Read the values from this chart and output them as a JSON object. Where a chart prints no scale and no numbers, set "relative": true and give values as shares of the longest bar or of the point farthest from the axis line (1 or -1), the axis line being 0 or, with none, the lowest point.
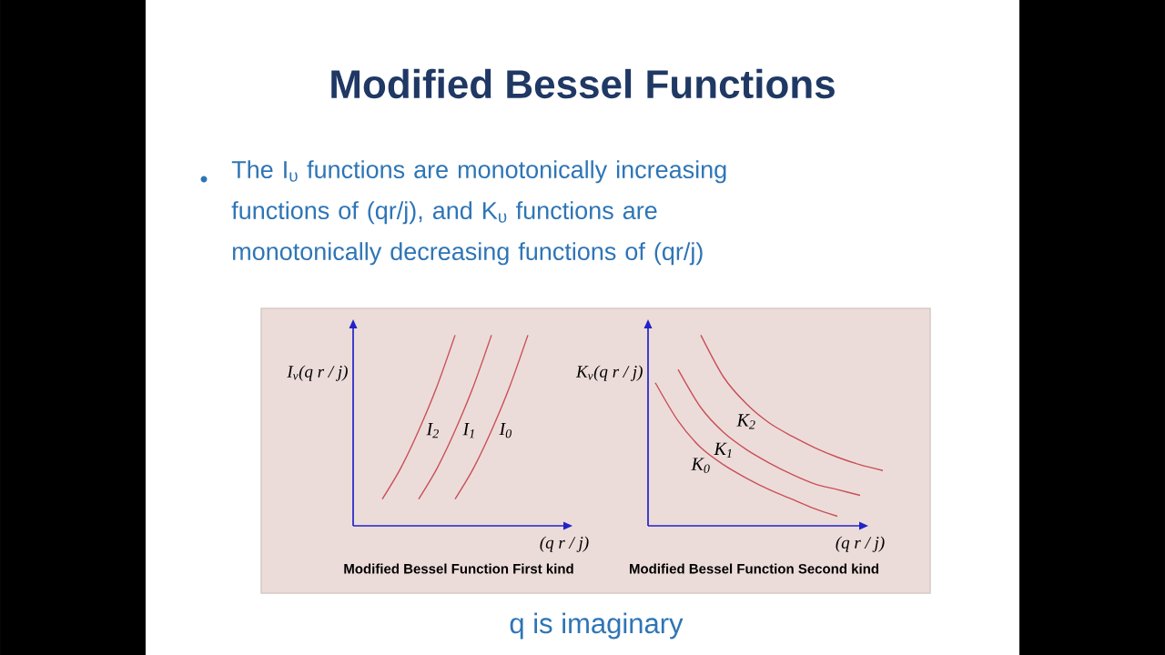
{
  "chart_data": [
    {
      "type": "other",
      "title": "Modified Bessel Functions",
      "subtitle": "The I$_{υ}$ functions are monotonically increasing functions of (qr/j), and K$_{υ}$ functions are monotonically decreasing functions of (qr/j)",
      "annotations": [
        "q is imaginary"
      ]
    },
    {
      "type": "line",
      "title": "Modified Bessel Function First kind",
      "xlabel": "(q r / j)",
      "ylabel": "I$_{v}$(q r / j)",
      "relative": true,
      "categories": [
        null,
        null,
        null,
        null,
        null,
        null,
        null,
        null,
        null,
        null,
        null
      ],
      "series": [
        {
          "name": "I$_{2}$",
          "color": "#c8505a",
          "values": [
            null,
            0.14,
            0.3,
            0.5,
            0.73,
            1.0,
            null,
            null,
            null,
            null,
            null
          ]
        },
        {
          "name": "I$_{1}$",
          "color": "#c8505a",
          "values": [
            null,
            null,
            null,
            0.14,
            0.3,
            0.5,
            0.73,
            1.0,
            null,
            null,
            null
          ]
        },
        {
          "name": "I$_{0}$",
          "color": "#c8505a",
          "values": [
            null,
            null,
            null,
            null,
            null,
            0.14,
            0.3,
            0.5,
            0.73,
            1.0,
            null
          ]
        }
      ]
    },
    {
      "type": "line",
      "title": "Modified Bessel Function Second kind",
      "xlabel": "(q r / j)",
      "ylabel": "K$_{v}$(q r / j)",
      "relative": true,
      "categories": [
        null,
        null,
        null,
        null,
        null,
        null,
        null,
        null,
        null,
        null,
        null
      ],
      "series": [
        {
          "name": "K$_{0}$",
          "color": "#c8505a",
          "values": [
            0.75,
            0.55,
            0.41,
            0.32,
            0.25,
            0.19,
            0.14,
            0.09,
            0.05,
            null,
            null
          ]
        },
        {
          "name": "K$_{1}$",
          "color": "#c8505a",
          "values": [
            null,
            0.82,
            0.62,
            0.49,
            0.4,
            0.33,
            0.27,
            0.22,
            0.19,
            0.16,
            null
          ]
        },
        {
          "name": "K$_{2}$",
          "color": "#c8505a",
          "values": [
            null,
            null,
            1.0,
            0.78,
            0.64,
            0.54,
            0.47,
            0.41,
            0.36,
            0.32,
            0.29
          ]
        }
      ]
    }
  ]
}
